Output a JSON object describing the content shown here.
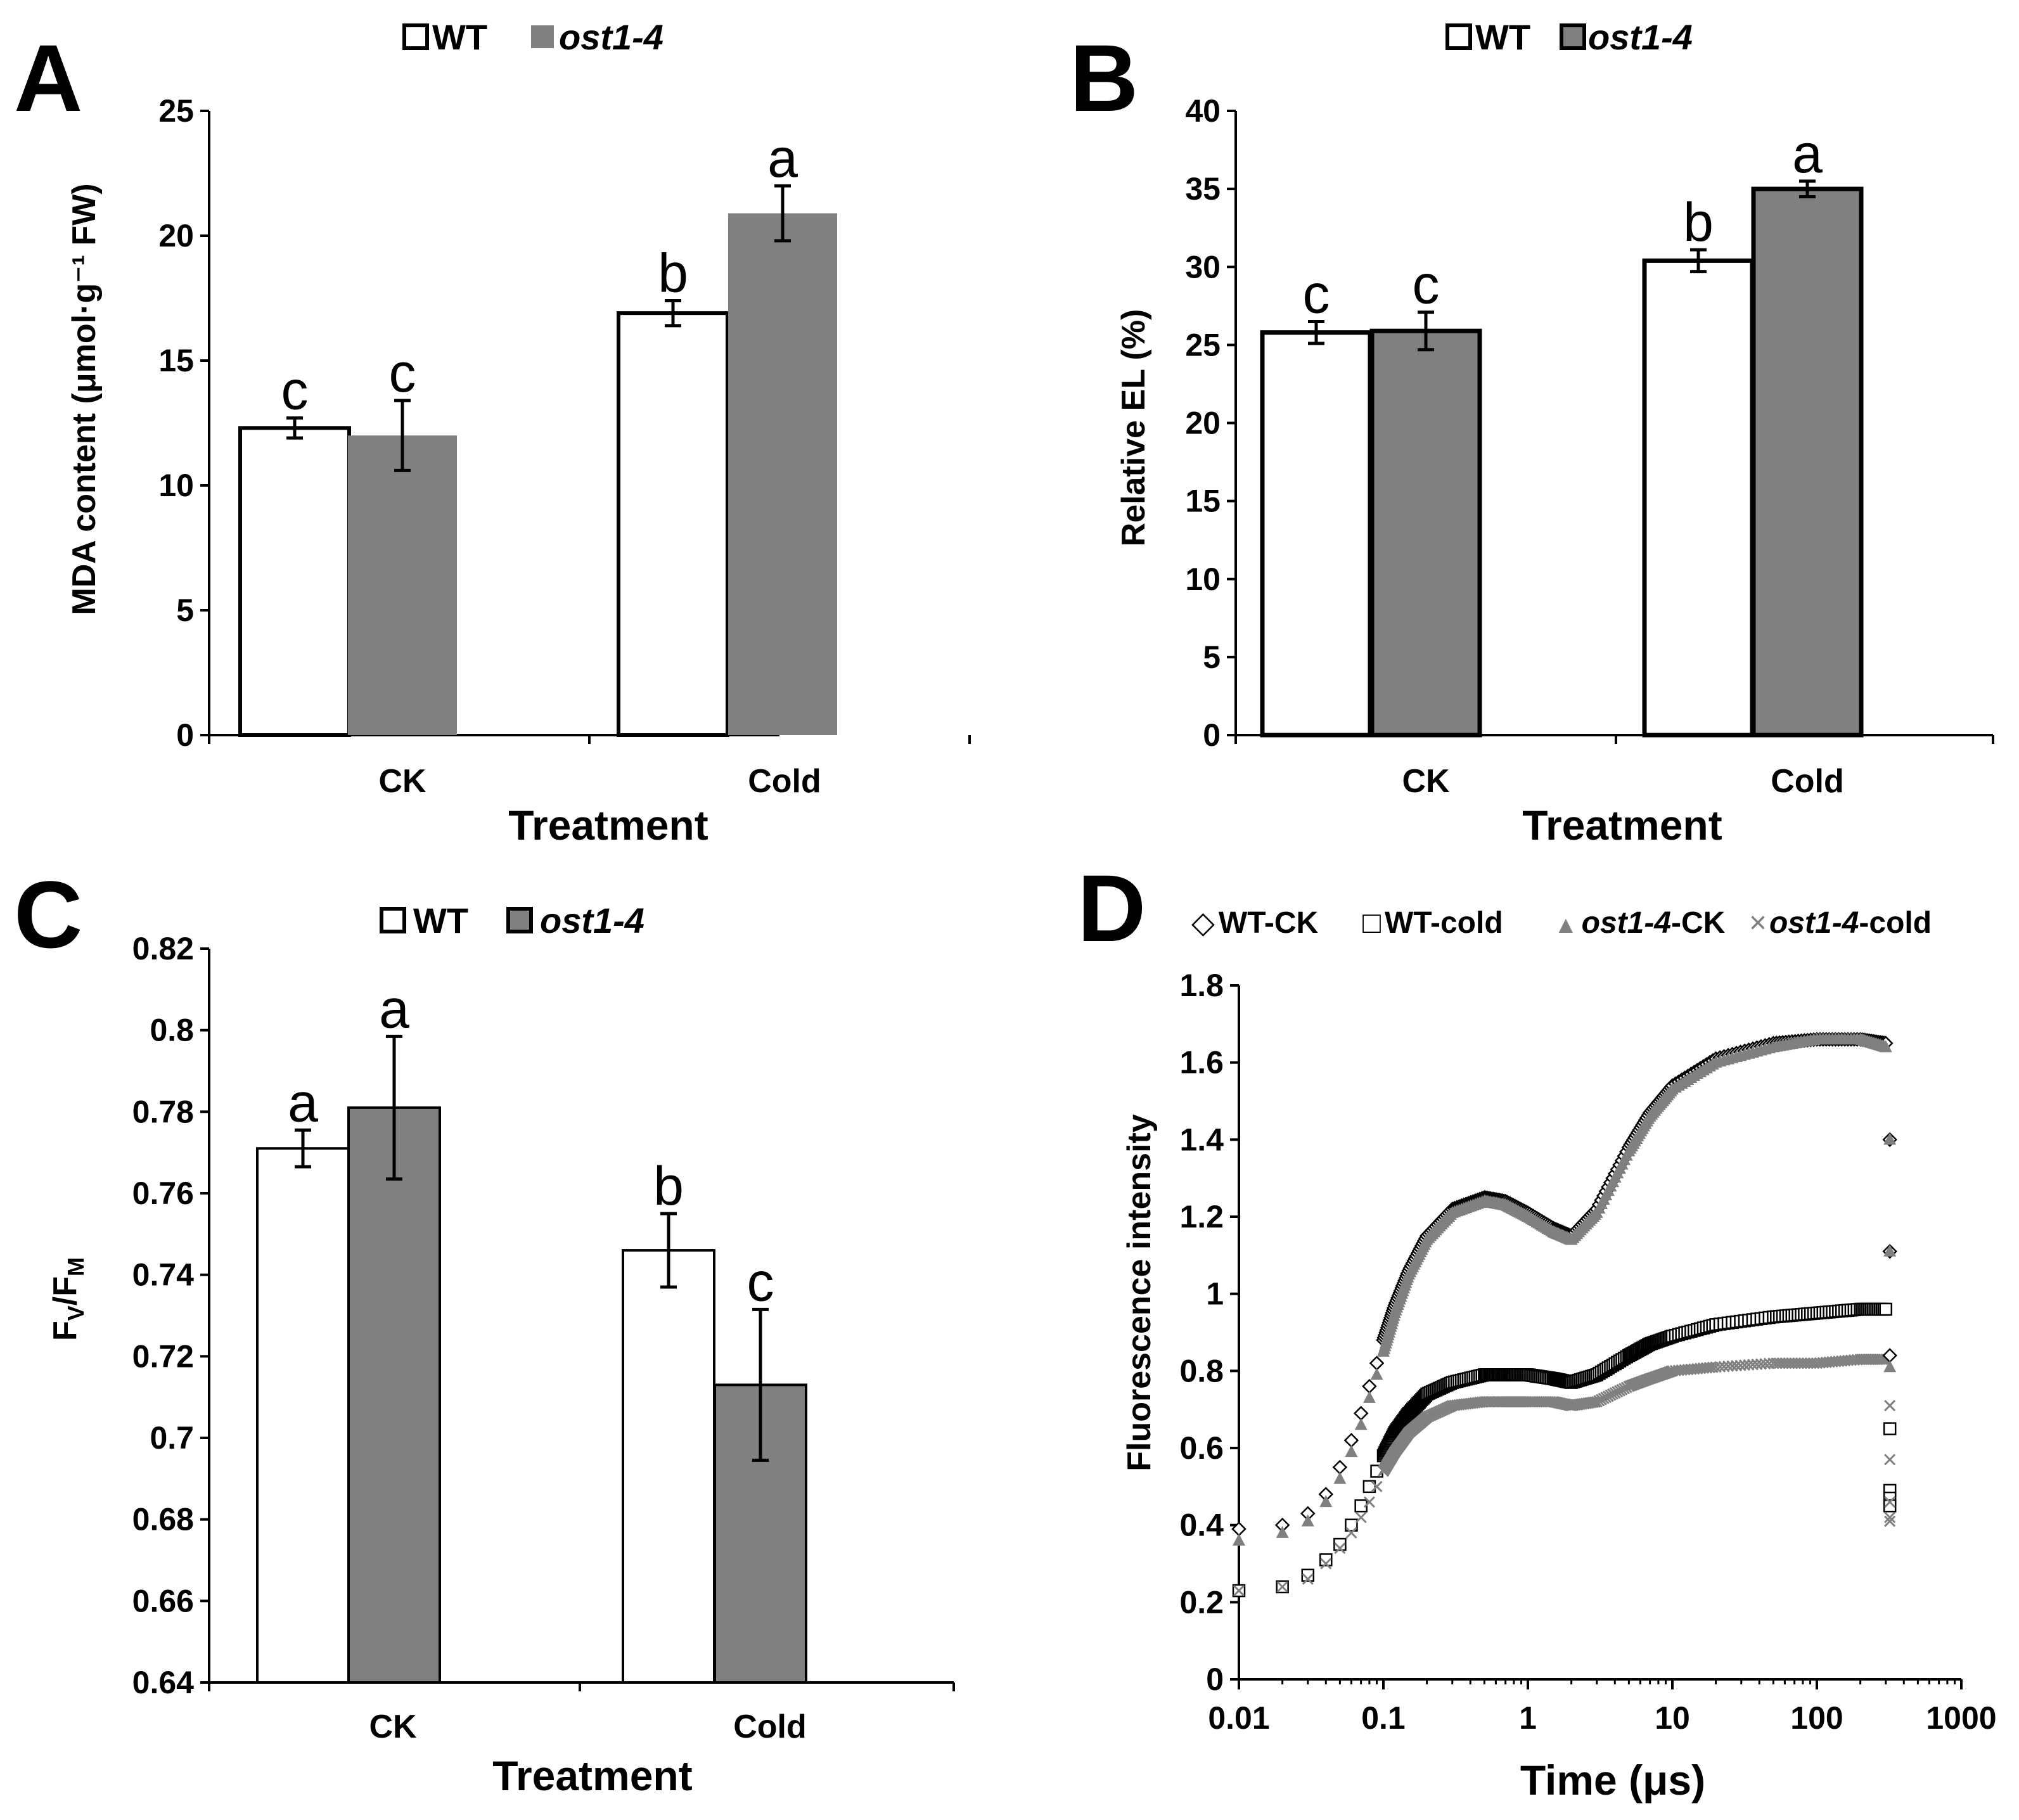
{
  "chart_data": [
    {
      "panel": "A",
      "type": "bar",
      "legend": [
        {
          "label": "WT",
          "italic": false
        },
        {
          "label": "ost1-4",
          "italic": true
        }
      ],
      "categories": [
        "CK",
        "Cold"
      ],
      "series": [
        {
          "name": "WT",
          "values": [
            12.3,
            16.9
          ],
          "errors": [
            0.4,
            0.5
          ],
          "letters": [
            "c",
            "b"
          ],
          "fill": "#ffffff"
        },
        {
          "name": "ost1-4",
          "values": [
            12.0,
            20.9
          ],
          "errors": [
            1.4,
            1.1
          ],
          "letters": [
            "c",
            "a"
          ],
          "fill": "#808080"
        }
      ],
      "ylim": [
        0,
        25
      ],
      "yticks": [
        0,
        5,
        10,
        15,
        20,
        25
      ],
      "ytick_labels": [
        "0",
        "5",
        "10",
        "15",
        "20",
        "25"
      ],
      "ylabel": "MDA content (μmol·g⁻¹ FW)",
      "xlabel": "Treatment"
    },
    {
      "panel": "B",
      "type": "bar",
      "legend": [
        {
          "label": "WT",
          "italic": false
        },
        {
          "label": "ost1-4",
          "italic": true
        }
      ],
      "categories": [
        "CK",
        "Cold"
      ],
      "series": [
        {
          "name": "WT",
          "values": [
            25.8,
            30.4
          ],
          "errors": [
            0.7,
            0.7
          ],
          "letters": [
            "c",
            "b"
          ],
          "fill": "#ffffff"
        },
        {
          "name": "ost1-4",
          "values": [
            25.9,
            35.0
          ],
          "errors": [
            1.2,
            0.5
          ],
          "letters": [
            "c",
            "a"
          ],
          "fill": "#808080"
        }
      ],
      "ylim": [
        0,
        40
      ],
      "yticks": [
        0,
        5,
        10,
        15,
        20,
        25,
        30,
        35,
        40
      ],
      "ytick_labels": [
        "0",
        "5",
        "10",
        "15",
        "20",
        "25",
        "30",
        "35",
        "40"
      ],
      "ylabel": "Relative EL (%)",
      "xlabel": "Treatment"
    },
    {
      "panel": "C",
      "type": "bar",
      "legend": [
        {
          "label": "WT",
          "italic": false
        },
        {
          "label": "ost1-4",
          "italic": true
        }
      ],
      "categories": [
        "CK",
        "Cold"
      ],
      "series": [
        {
          "name": "WT",
          "values": [
            0.771,
            0.746
          ],
          "errors": [
            0.0045,
            0.009
          ],
          "letters": [
            "a",
            "b"
          ],
          "fill": "#ffffff"
        },
        {
          "name": "ost1-4",
          "values": [
            0.781,
            0.713
          ],
          "errors": [
            0.0175,
            0.0185
          ],
          "letters": [
            "a",
            "c"
          ],
          "fill": "#808080"
        }
      ],
      "ylim": [
        0.64,
        0.82
      ],
      "yticks": [
        0.64,
        0.66,
        0.68,
        0.7,
        0.72,
        0.74,
        0.76,
        0.78,
        0.8,
        0.82
      ],
      "ytick_labels": [
        "0.64",
        "0.66",
        "0.68",
        "0.7",
        "0.72",
        "0.74",
        "0.76",
        "0.78",
        "0.8",
        "0.82"
      ],
      "ylabel_main": "F",
      "ylabel_sub1": "V",
      "ylabel_mid": "/F",
      "ylabel_sub2": "M",
      "xlabel": "Treatment"
    },
    {
      "panel": "D",
      "type": "scatter",
      "x_scale": "log",
      "legend": [
        {
          "marker": "◇",
          "prefix": "WT-CK",
          "italic": "",
          "suffix": ""
        },
        {
          "marker": "□",
          "prefix": "WT-cold",
          "italic": "",
          "suffix": ""
        },
        {
          "marker": "▲",
          "prefix": "",
          "italic": "ost1-4",
          "suffix": "-CK"
        },
        {
          "marker": "×",
          "prefix": "",
          "italic": "ost1-4",
          "suffix": "-cold"
        }
      ],
      "series": [
        {
          "name": "WT-CK",
          "marker": "diamond",
          "color": "#000000",
          "x": [
            0.01,
            0.02,
            0.03,
            0.04,
            0.05,
            0.06,
            0.07,
            0.08,
            0.09,
            0.1,
            0.12,
            0.15,
            0.2,
            0.3,
            0.5,
            0.7,
            1,
            1.5,
            2,
            3,
            5,
            7,
            10,
            20,
            50,
            100,
            200,
            300
          ],
          "y": [
            0.39,
            0.4,
            0.43,
            0.48,
            0.55,
            0.62,
            0.69,
            0.76,
            0.82,
            0.88,
            0.97,
            1.06,
            1.15,
            1.22,
            1.25,
            1.24,
            1.21,
            1.17,
            1.15,
            1.22,
            1.38,
            1.47,
            1.54,
            1.61,
            1.65,
            1.66,
            1.66,
            1.65
          ]
        },
        {
          "name": "WT-cold",
          "marker": "square",
          "color": "#000000",
          "x": [
            0.01,
            0.02,
            0.03,
            0.04,
            0.05,
            0.06,
            0.07,
            0.08,
            0.09,
            0.1,
            0.12,
            0.15,
            0.2,
            0.3,
            0.5,
            0.7,
            1,
            1.5,
            2,
            3,
            5,
            7,
            10,
            20,
            50,
            100,
            200,
            300
          ],
          "y": [
            0.23,
            0.24,
            0.27,
            0.31,
            0.35,
            0.4,
            0.45,
            0.5,
            0.54,
            0.58,
            0.64,
            0.69,
            0.74,
            0.77,
            0.79,
            0.79,
            0.79,
            0.78,
            0.77,
            0.79,
            0.84,
            0.87,
            0.89,
            0.92,
            0.94,
            0.95,
            0.96,
            0.96
          ]
        },
        {
          "name": "ost1-4-CK",
          "marker": "triangle",
          "color": "#808080",
          "x": [
            0.01,
            0.02,
            0.03,
            0.04,
            0.05,
            0.06,
            0.07,
            0.08,
            0.09,
            0.1,
            0.12,
            0.15,
            0.2,
            0.3,
            0.5,
            0.7,
            1,
            1.5,
            2,
            3,
            5,
            7,
            10,
            20,
            50,
            100,
            200,
            300
          ],
          "y": [
            0.36,
            0.38,
            0.41,
            0.46,
            0.52,
            0.59,
            0.66,
            0.73,
            0.79,
            0.85,
            0.95,
            1.05,
            1.14,
            1.21,
            1.24,
            1.23,
            1.2,
            1.16,
            1.14,
            1.21,
            1.37,
            1.46,
            1.53,
            1.6,
            1.64,
            1.66,
            1.66,
            1.64
          ]
        },
        {
          "name": "ost1-4-cold",
          "marker": "x",
          "color": "#808080",
          "x": [
            0.01,
            0.02,
            0.03,
            0.04,
            0.05,
            0.06,
            0.07,
            0.08,
            0.09,
            0.1,
            0.12,
            0.15,
            0.2,
            0.3,
            0.5,
            0.7,
            1,
            1.5,
            2,
            3,
            5,
            7,
            10,
            20,
            50,
            100,
            200,
            300
          ],
          "y": [
            0.23,
            0.24,
            0.26,
            0.3,
            0.34,
            0.38,
            0.42,
            0.46,
            0.5,
            0.54,
            0.59,
            0.64,
            0.68,
            0.71,
            0.72,
            0.72,
            0.72,
            0.72,
            0.71,
            0.72,
            0.76,
            0.78,
            0.8,
            0.81,
            0.82,
            0.82,
            0.83,
            0.83
          ]
        }
      ],
      "tail_points": [
        {
          "series": 0,
          "x": 320,
          "y": [
            1.4,
            1.11,
            0.84
          ]
        },
        {
          "series": 1,
          "x": 320,
          "y": [
            0.65,
            0.49,
            0.47,
            0.45
          ]
        },
        {
          "series": 2,
          "x": 320,
          "y": [
            1.4,
            1.11,
            0.81
          ]
        },
        {
          "series": 3,
          "x": 320,
          "y": [
            0.71,
            0.57,
            0.46,
            0.42,
            0.41
          ]
        }
      ],
      "xlim": [
        0.01,
        1000
      ],
      "xticks": [
        0.01,
        0.1,
        1,
        10,
        100,
        1000
      ],
      "xtick_labels": [
        "0.01",
        "0.1",
        "1",
        "10",
        "100",
        "1000"
      ],
      "ylim": [
        0,
        1.8
      ],
      "yticks": [
        0,
        0.2,
        0.4,
        0.6,
        0.8,
        1,
        1.2,
        1.4,
        1.6,
        1.8
      ],
      "ytick_labels": [
        "0",
        "0.2",
        "0.4",
        "0.6",
        "0.8",
        "1",
        "1.2",
        "1.4",
        "1.6",
        "1.8"
      ],
      "ylabel": "Fluorescence intensity",
      "xlabel": "Time (μs)"
    }
  ]
}
